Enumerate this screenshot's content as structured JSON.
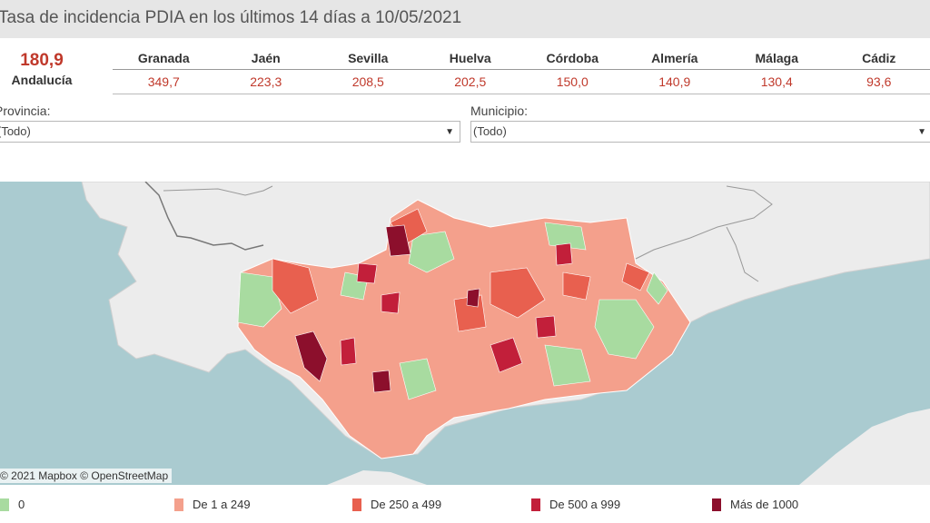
{
  "header": {
    "title": "Tasa de incidencia PDIA en los últimos 14 días a 10/05/2021"
  },
  "summary": {
    "value": "180,9",
    "label": "Andalucía"
  },
  "provinces": [
    {
      "name": "Granada",
      "value": "349,7"
    },
    {
      "name": "Jaén",
      "value": "223,3"
    },
    {
      "name": "Sevilla",
      "value": "208,5"
    },
    {
      "name": "Huelva",
      "value": "202,5"
    },
    {
      "name": "Córdoba",
      "value": "150,0"
    },
    {
      "name": "Almería",
      "value": "140,9"
    },
    {
      "name": "Málaga",
      "value": "130,4"
    },
    {
      "name": "Cádiz",
      "value": "93,6"
    }
  ],
  "filters": {
    "provincia": {
      "label": "Provincia:",
      "value": "(Todo)"
    },
    "municipio": {
      "label": "Municipio:",
      "value": "(Todo)"
    }
  },
  "map": {
    "attribution": "© 2021 Mapbox © OpenStreetMap"
  },
  "legend": [
    {
      "label": "0",
      "color": "#a8dba0"
    },
    {
      "label": "De 1 a 249",
      "color": "#f4a08c"
    },
    {
      "label": "De 250 a 499",
      "color": "#e8604f"
    },
    {
      "label": "De 500 a 999",
      "color": "#c21f3a"
    },
    {
      "label": "Más de 1000",
      "color": "#8c0f2c"
    }
  ],
  "colors": {
    "accent_red": "#c0392b",
    "land": "#ececec",
    "sea": "#aacbd0"
  }
}
